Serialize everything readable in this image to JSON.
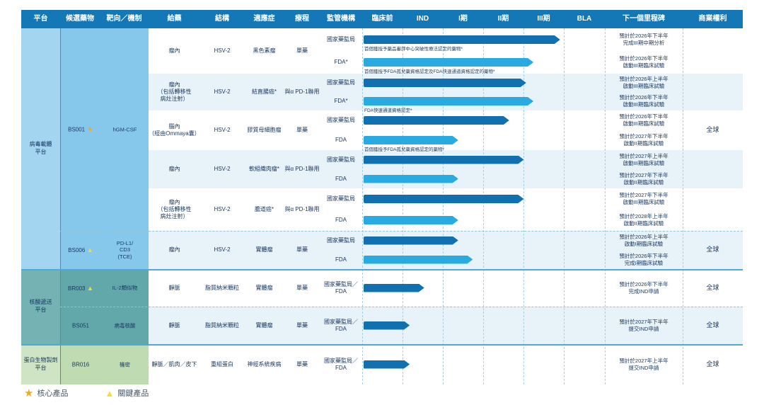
{
  "chart_data": {
    "type": "bar",
    "title": "pipeline-overview",
    "phases": [
      "臨床前",
      "IND",
      "I期",
      "II期",
      "III期",
      "BLA"
    ],
    "header": {
      "cols": [
        "平台",
        "候選藥物",
        "靶向／機制",
        "給藥",
        "結構",
        "適應症",
        "療程",
        "監管機構",
        "臨床前",
        "IND",
        "I期",
        "II期",
        "III期",
        "BLA",
        "下一個里程碑",
        "商業權利"
      ]
    },
    "colors": {
      "header_bg": "#1478b6",
      "dark_arrow": "#1171b0",
      "light_arrow": "#29abe2",
      "row_tint": "#e8f2f9",
      "p1_col": "#a3d5f0",
      "p1_block": "#86c8eb",
      "p2_col": "#74b2b3",
      "p2_block": "#62a8aa",
      "p3_col": "#cfe4c5",
      "p3_block": "#bfdbb2",
      "star": "#f6a723",
      "triangle": "#f2df2e"
    },
    "platforms": [
      {
        "label": "病毒載體\n平台",
        "candidates": [
          {
            "code": "BS001",
            "marker": "star",
            "target": "hGM-CSF"
          },
          {
            "code": "BS006",
            "marker": "triangle",
            "target": "PD-L1/\nCD3\n(TCE)"
          }
        ]
      },
      {
        "label": "核酸遞送\n平台",
        "candidates": [
          {
            "code": "BR003",
            "marker": "triangle",
            "target": "IL-2類似物"
          },
          {
            "code": "BS051",
            "marker": null,
            "target": "病毒核酸"
          }
        ]
      },
      {
        "label": "蛋白生物製劑\n平台",
        "candidates": [
          {
            "code": "BR016",
            "marker": null,
            "target": "機密"
          }
        ]
      }
    ],
    "rows": [
      {
        "admin": "瘤內",
        "structure": "HSV-2",
        "indication": "黑色素瘤",
        "course": "單藥",
        "bars": [
          {
            "reg": "國家藥監局",
            "color": "dark",
            "end_pct": 81,
            "note": "首個獲授予藥品審評中心突破性療法認定的藥物*",
            "milestone": "預計於2026年下半年\n完成III期中期分析"
          },
          {
            "reg": "FDA*",
            "color": "light",
            "end_pct": 70,
            "note": "首個獲授予FDA孤兒藥資格認定及FDA快速通道資格認定的藥物*",
            "milestone": "預計於2026年下半年\n啟動III期臨床試驗"
          }
        ],
        "rights": ""
      },
      {
        "admin": "瘤內\n（包括轉移性\n病灶注射）",
        "structure": "HSV-2",
        "indication": "結直腸癌*",
        "course": "與α PD-1聯用",
        "bars": [
          {
            "reg": "國家藥監局",
            "color": "dark",
            "end_pct": 67,
            "note": "",
            "milestone": "預計於2026年上半年\n啟動III期臨床試驗"
          },
          {
            "reg": "FDA*",
            "color": "light",
            "end_pct": 70,
            "note": "FDA快速通道資格認定*",
            "milestone": "預計於2026年下半年\n啟動III期臨床試驗"
          }
        ],
        "rights": ""
      },
      {
        "admin": "腦內\n（經由Ommaya囊）",
        "structure": "HSV-2",
        "indication": "膠質母細胞瘤",
        "course": "單藥",
        "bars": [
          {
            "reg": "國家藥監局",
            "color": "dark",
            "end_pct": 60,
            "note": "",
            "milestone": "預計於2026年下半年\n啟動III期臨床試驗"
          },
          {
            "reg": "FDA",
            "color": "light",
            "end_pct": 39,
            "note": "首個獲授予FDA孤兒藥資格認定的藥物*",
            "milestone": "預計於2027年下半年\n啟動II期臨床試驗"
          }
        ],
        "rights": "全球"
      },
      {
        "admin": "瘤內",
        "structure": "HSV-2",
        "indication": "軟組織肉瘤*",
        "course": "與α PD-1聯用",
        "bars": [
          {
            "reg": "國家藥監局",
            "color": "dark",
            "end_pct": 66,
            "note": "",
            "milestone": "預計於2027年上半年\n啟動III期臨床試驗"
          },
          {
            "reg": "FDA",
            "color": "light",
            "end_pct": 39,
            "note": "",
            "milestone": "預計於2027年下半年\n啟動II期臨床試驗"
          }
        ],
        "rights": ""
      },
      {
        "admin": "瘤內\n（包括轉移性\n病灶注射）",
        "structure": "HSV-2",
        "indication": "膽道癌*",
        "course": "與α PD-1聯用",
        "bars": [
          {
            "reg": "國家藥監局",
            "color": "dark",
            "end_pct": 66,
            "note": "",
            "milestone": "預計於2027年下半年\n啟動III期臨床試驗"
          },
          {
            "reg": "FDA",
            "color": "light",
            "end_pct": 39,
            "note": "",
            "milestone": "預計於2028年上半年\n啟動II期臨床試驗"
          }
        ],
        "rights": ""
      },
      {
        "admin": "瘤內",
        "structure": "HSV-2",
        "indication": "實體瘤",
        "course": "單藥",
        "bars": [
          {
            "reg": "國家藥監局",
            "color": "dark",
            "end_pct": 39,
            "note": "",
            "milestone": "預計於2026年上半年\n啟動I期臨床試驗"
          },
          {
            "reg": "FDA",
            "color": "light",
            "end_pct": 45,
            "note": "",
            "milestone": "預計於2026年下半年\n完成I期臨床試驗"
          }
        ],
        "rights": "全球"
      },
      {
        "admin": "靜脈",
        "structure": "脂質納米顆粒",
        "indication": "實體瘤",
        "course": "單藥",
        "bars": [
          {
            "reg": "國家藥監局／\nFDA",
            "color": "dark",
            "end_pct": 25,
            "note": "",
            "milestone": "預計於2026年下半年\n完成IND申請"
          }
        ],
        "rights": "全球"
      },
      {
        "admin": "靜脈",
        "structure": "脂質納米顆粒",
        "indication": "實體瘤",
        "course": "單藥",
        "bars": [
          {
            "reg": "國家藥監局／\nFDA",
            "color": "dark",
            "end_pct": 19,
            "note": "",
            "milestone": "預計於2027年下半年\n提交IND申請"
          }
        ],
        "rights": "全球"
      },
      {
        "admin": "靜脈／肌肉／皮下",
        "structure": "重組蛋白",
        "indication": "神經系統疾病",
        "course": "單藥",
        "bars": [
          {
            "reg": "國家藥監局／\nFDA",
            "color": "dark",
            "end_pct": 19,
            "note": "",
            "milestone": "預計於2027年上半年\n提交IND申請"
          }
        ],
        "rights": "全球"
      }
    ],
    "legend": {
      "core": "核心產品",
      "key": "關鍵產品"
    }
  }
}
